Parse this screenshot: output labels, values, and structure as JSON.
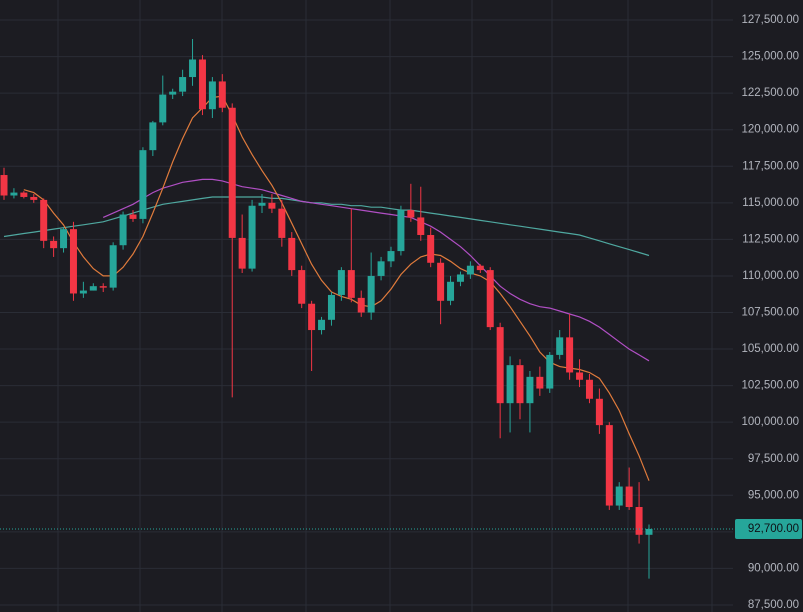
{
  "chart_data": {
    "type": "candlestick",
    "ylim": [
      87021,
      128868
    ],
    "yticks": [
      {
        "value": 87500,
        "label": "87,500.00"
      },
      {
        "value": 90000,
        "label": "90,000.00"
      },
      {
        "value": 92500,
        "label": "92,500.00"
      },
      {
        "value": 95000,
        "label": "95,000.00"
      },
      {
        "value": 97500,
        "label": "97,500.00"
      },
      {
        "value": 100000,
        "label": "100,000.00"
      },
      {
        "value": 102500,
        "label": "102,500.00"
      },
      {
        "value": 105000,
        "label": "105,000.00"
      },
      {
        "value": 107500,
        "label": "107,500.00"
      },
      {
        "value": 110000,
        "label": "110,000.00"
      },
      {
        "value": 112500,
        "label": "112,500.00"
      },
      {
        "value": 115000,
        "label": "115,000.00"
      },
      {
        "value": 117500,
        "label": "117,500.00"
      },
      {
        "value": 120000,
        "label": "120,000.00"
      },
      {
        "value": 122500,
        "label": "122,500.00"
      },
      {
        "value": 125000,
        "label": "125,000.00"
      },
      {
        "value": 127500,
        "label": "127,500.00"
      }
    ],
    "grid": true,
    "up_color": "#26a69a",
    "down_color": "#f23645",
    "current_price": {
      "value": 92700,
      "label": "92,700.00"
    },
    "open": [
      116900,
      115500,
      115700,
      115400,
      115200,
      112400,
      111900,
      113200,
      108800,
      109000,
      109300,
      109200,
      112100,
      114200,
      113900,
      118600,
      120500,
      122400,
      122600,
      123600,
      124800,
      121400,
      123300,
      121500,
      112600,
      110500,
      114800,
      115000,
      114600,
      112600,
      110400,
      108100,
      106300,
      107000,
      108700,
      110400,
      108500,
      107500,
      110000,
      111000,
      111700,
      114500,
      114000,
      112800,
      110900,
      108300,
      109600,
      110100,
      110700,
      110400,
      106500,
      101300,
      103900,
      101300,
      103100,
      102300,
      104600,
      105800,
      103400,
      102900,
      101600,
      99800,
      94300,
      95600,
      94200,
      92300
    ],
    "high": [
      117400,
      116000,
      115800,
      115600,
      115300,
      112700,
      113300,
      113700,
      109600,
      109500,
      109500,
      112300,
      114400,
      114500,
      118800,
      120600,
      123700,
      122800,
      124100,
      126200,
      125100,
      123600,
      123800,
      121800,
      114200,
      115200,
      115600,
      115600,
      115200,
      113000,
      110700,
      108300,
      107200,
      108900,
      110600,
      114600,
      109000,
      111600,
      111300,
      112000,
      114800,
      116300,
      116100,
      113300,
      111200,
      110000,
      110300,
      111000,
      110800,
      110600,
      106800,
      104500,
      104300,
      103500,
      103800,
      104800,
      106300,
      107400,
      104300,
      103300,
      102300,
      100000,
      95900,
      96900,
      95900,
      93000
    ],
    "low": [
      115200,
      115300,
      115300,
      115000,
      111900,
      111300,
      111600,
      108300,
      108500,
      109000,
      108900,
      109000,
      111800,
      113700,
      113600,
      118200,
      120300,
      122100,
      122300,
      123000,
      121000,
      120800,
      121200,
      101700,
      110200,
      110300,
      114300,
      114300,
      112000,
      110000,
      107800,
      103500,
      106000,
      106600,
      108300,
      108200,
      107200,
      107000,
      109700,
      110600,
      111400,
      113700,
      112400,
      110600,
      106700,
      108000,
      109300,
      109800,
      110200,
      106300,
      98900,
      99300,
      100200,
      99300,
      101800,
      102000,
      104300,
      102900,
      102400,
      101300,
      99200,
      94000,
      94000,
      94000,
      91700,
      89300
    ],
    "close": [
      115500,
      115700,
      115400,
      115200,
      112400,
      111900,
      113200,
      108800,
      109000,
      109300,
      109200,
      112100,
      114200,
      113900,
      118600,
      120500,
      122400,
      122600,
      123600,
      124800,
      121400,
      123300,
      121500,
      112600,
      110500,
      114800,
      115000,
      114600,
      112600,
      110400,
      108100,
      106300,
      107000,
      108700,
      110400,
      108500,
      107500,
      110000,
      111000,
      111700,
      114500,
      114000,
      112800,
      110900,
      108300,
      109600,
      110100,
      110700,
      110400,
      106500,
      101300,
      103900,
      101300,
      103100,
      102300,
      104600,
      105800,
      103400,
      102900,
      101600,
      99800,
      94300,
      95600,
      94200,
      92300,
      92700
    ],
    "series": [
      {
        "color": "#4fa8a0",
        "values": [
          112700,
          112800,
          112900,
          113000,
          113100,
          113200,
          113300,
          113400,
          113500,
          113600,
          113700,
          113900,
          114100,
          114300,
          114500,
          114700,
          114900,
          115000,
          115100,
          115200,
          115300,
          115400,
          115400,
          115400,
          115400,
          115400,
          115400,
          115300,
          115300,
          115200,
          115100,
          115000,
          115000,
          114900,
          114900,
          114800,
          114800,
          114700,
          114700,
          114600,
          114500,
          114500,
          114400,
          114300,
          114200,
          114100,
          114000,
          113900,
          113800,
          113700,
          113600,
          113500,
          113400,
          113300,
          113200,
          113100,
          113000,
          112900,
          112800,
          112600,
          112400,
          112200,
          112000,
          111800,
          111600,
          111400
        ]
      },
      {
        "color": "#b04fc4",
        "values": [
          null,
          null,
          null,
          null,
          null,
          null,
          null,
          null,
          null,
          null,
          114000,
          114300,
          114600,
          114900,
          115300,
          115700,
          116000,
          116200,
          116400,
          116500,
          116600,
          116600,
          116500,
          116300,
          116100,
          116000,
          115900,
          115700,
          115500,
          115300,
          115100,
          115000,
          114900,
          114800,
          114700,
          114600,
          114500,
          114400,
          114300,
          114200,
          114100,
          114000,
          113700,
          113400,
          113000,
          112500,
          112000,
          111400,
          110700,
          110000,
          109300,
          108800,
          108400,
          108100,
          107900,
          107800,
          107600,
          107400,
          107200,
          106900,
          106500,
          106000,
          105500,
          105000,
          104600,
          104200
        ]
      },
      {
        "color": "#e07b3c",
        "values": [
          null,
          null,
          115900,
          115700,
          115200,
          114300,
          113500,
          112300,
          111300,
          110500,
          110000,
          110000,
          110600,
          111500,
          112700,
          114300,
          116000,
          117800,
          119400,
          120800,
          121500,
          122200,
          122300,
          121000,
          119500,
          118300,
          117200,
          116200,
          115000,
          113600,
          112200,
          110800,
          109700,
          108900,
          108600,
          108400,
          108000,
          107900,
          108300,
          109100,
          110100,
          110800,
          111300,
          111500,
          111400,
          111000,
          110500,
          110200,
          110000,
          109600,
          108800,
          107900,
          106900,
          105900,
          104800,
          104100,
          103800,
          103700,
          103600,
          103400,
          103000,
          102000,
          100800,
          99200,
          97700,
          96000
        ]
      }
    ]
  }
}
